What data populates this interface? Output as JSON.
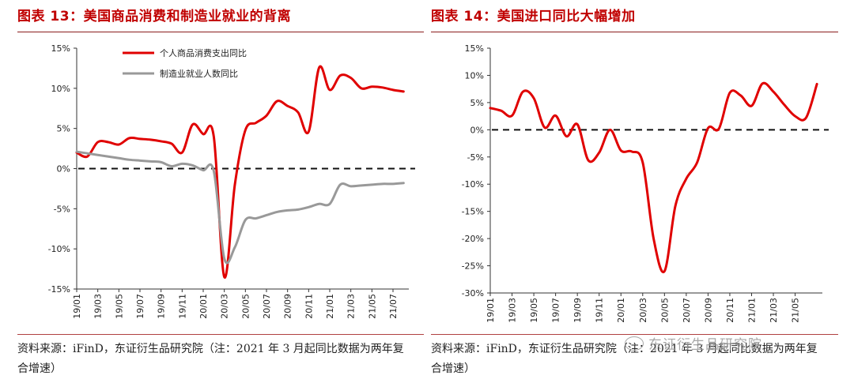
{
  "left": {
    "title": "图表 13：美国商品消费和制造业就业的背离",
    "source": "资料来源：iFinD，东证衍生品研究院（注：2021 年 3 月起同比数据为两年复合增速）"
  },
  "right": {
    "title": "图表 14：美国进口同比大幅增加",
    "source": "资料来源：iFinD，东证衍生品研究院（注：2021 年 3 月起同比数据为两年复合增速）"
  },
  "watermark": "东证衍生品研究院",
  "colors": {
    "series_red": "#e00000",
    "series_gray": "#999999",
    "title": "#c00000"
  },
  "chart_data": [
    {
      "type": "line",
      "ylim": [
        -15,
        15
      ],
      "yticks": [
        "15%",
        "10%",
        "5%",
        "0%",
        "-5%",
        "-10%",
        "-15%"
      ],
      "xlim": [
        0,
        31.5
      ],
      "xticks": [
        "19/01",
        "19/03",
        "19/05",
        "19/07",
        "19/09",
        "19/11",
        "20/01",
        "20/03",
        "20/05",
        "20/07",
        "20/09",
        "20/11",
        "21/01",
        "21/03",
        "21/05",
        "21/07"
      ],
      "reference_line": 0,
      "legend_placement": "top-center",
      "series": [
        {
          "name": "个人商品消费支出同比",
          "x": [
            0,
            1,
            2,
            3,
            4,
            5,
            6,
            7,
            8,
            9,
            10,
            11,
            12,
            13,
            14,
            15,
            16,
            17,
            18,
            19,
            20,
            21,
            22,
            23,
            24,
            25,
            26,
            27,
            28,
            29,
            30,
            31
          ],
          "values": [
            2.0,
            1.5,
            3.3,
            3.3,
            3.0,
            3.8,
            3.7,
            3.6,
            3.4,
            3.1,
            2.0,
            5.5,
            4.3,
            4.0,
            -13.5,
            -2.0,
            4.8,
            5.7,
            6.6,
            8.4,
            7.8,
            7.0,
            4.6,
            12.6,
            9.8,
            11.6,
            11.3,
            10.0,
            10.2,
            10.1,
            9.8,
            9.6
          ]
        },
        {
          "name": "制造业就业人数同比",
          "x": [
            0,
            1,
            2,
            3,
            4,
            5,
            6,
            7,
            8,
            9,
            10,
            11,
            12,
            13,
            14,
            15,
            16,
            17,
            18,
            19,
            20,
            21,
            22,
            23,
            24,
            25,
            26,
            27,
            28,
            29,
            30,
            31
          ],
          "values": [
            2.1,
            1.9,
            1.7,
            1.5,
            1.3,
            1.1,
            1.0,
            0.9,
            0.8,
            0.3,
            0.6,
            0.4,
            -0.2,
            -0.3,
            -11.2,
            -9.8,
            -6.4,
            -6.2,
            -5.8,
            -5.4,
            -5.2,
            -5.1,
            -4.8,
            -4.4,
            -4.4,
            -2.0,
            -2.2,
            -2.1,
            -2.0,
            -1.9,
            -1.9,
            -1.8
          ]
        }
      ]
    },
    {
      "type": "line",
      "ylim": [
        -30,
        15
      ],
      "yticks": [
        "15%",
        "10%",
        "5%",
        "0%",
        "-5%",
        "-10%",
        "-15%",
        "-20%",
        "-25%",
        "-30%"
      ],
      "xlim": [
        0,
        30.5
      ],
      "xticks": [
        "19/01",
        "19/03",
        "19/05",
        "19/07",
        "19/09",
        "19/11",
        "20/01",
        "20/03",
        "20/05",
        "20/07",
        "20/09",
        "20/11",
        "21/01",
        "21/03",
        "21/05"
      ],
      "reference_line": 0,
      "series": [
        {
          "x": [
            0,
            1,
            2,
            3,
            4,
            5,
            6,
            7,
            8,
            9,
            10,
            11,
            12,
            13,
            14,
            15,
            16,
            17,
            18,
            19,
            20,
            21,
            22,
            23,
            24,
            25,
            26,
            27,
            28,
            29,
            30
          ],
          "values": [
            4.0,
            3.5,
            2.6,
            7.0,
            5.8,
            0.4,
            2.6,
            -1.2,
            1.0,
            -5.6,
            -4.2,
            0.0,
            -3.8,
            -4.0,
            -6.0,
            -20.0,
            -26.0,
            -14.0,
            -9.0,
            -6.0,
            0.3,
            0.2,
            6.8,
            6.3,
            4.4,
            8.5,
            7.0,
            4.6,
            2.5,
            2.2,
            8.4
          ]
        }
      ]
    }
  ]
}
